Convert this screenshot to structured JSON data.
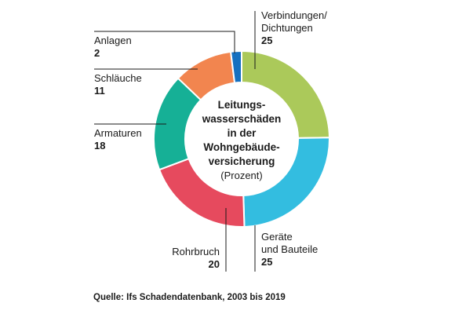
{
  "chart_data": {
    "type": "pie",
    "title_lines": [
      "Leitungs-",
      "wasserschäden",
      "in der",
      "Wohngebäude-",
      "versicherung"
    ],
    "subtitle": "(Prozent)",
    "source": "Quelle: Ifs Schadendatenbank, 2003 bis 2019",
    "slices": [
      {
        "label_lines": [
          "Verbindungen/",
          "Dichtungen"
        ],
        "value": 25,
        "color": "#abc95a"
      },
      {
        "label_lines": [
          "Geräte",
          "und Bauteile"
        ],
        "value": 25,
        "color": "#33bde0"
      },
      {
        "label_lines": [
          "Rohrbruch"
        ],
        "value": 20,
        "color": "#e64a5e"
      },
      {
        "label_lines": [
          "Armaturen"
        ],
        "value": 18,
        "color": "#16b096"
      },
      {
        "label_lines": [
          "Schläuche"
        ],
        "value": 11,
        "color": "#f2854f"
      },
      {
        "label_lines": [
          "Anlagen"
        ],
        "value": 2,
        "color": "#1570c0"
      }
    ]
  }
}
